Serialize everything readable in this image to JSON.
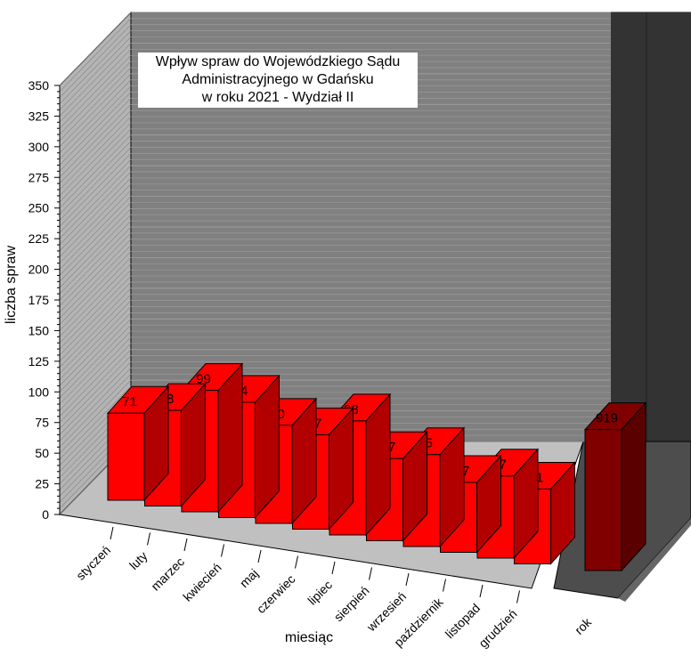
{
  "chart_data": {
    "type": "bar",
    "title_lines": [
      "Wpływ spraw do Wojewódzkiego Sądu",
      "Administracyjnego w Gdańsku",
      "w roku 2021 - Wydział II"
    ],
    "xlabel": "miesiąc",
    "ylabel": "liczba spraw",
    "ylim": [
      0,
      350
    ],
    "y_ticks": [
      0,
      25,
      50,
      75,
      100,
      125,
      150,
      175,
      200,
      225,
      250,
      275,
      300,
      325,
      350
    ],
    "categories": [
      "styczeń",
      "luty",
      "marzec",
      "kwiecień",
      "maj",
      "czerwiec",
      "lipiec",
      "sierpień",
      "wrzesień",
      "październik",
      "listopad",
      "grudzień"
    ],
    "values": [
      71,
      78,
      99,
      94,
      80,
      77,
      93,
      67,
      75,
      57,
      67,
      61
    ],
    "total": {
      "label": "rok",
      "value": 919,
      "display_height": 115
    },
    "grid": true,
    "bar_color": "#ff0000",
    "total_color": "#800000",
    "wall_color": "#808080",
    "floor_color": "#c0c0c0"
  }
}
